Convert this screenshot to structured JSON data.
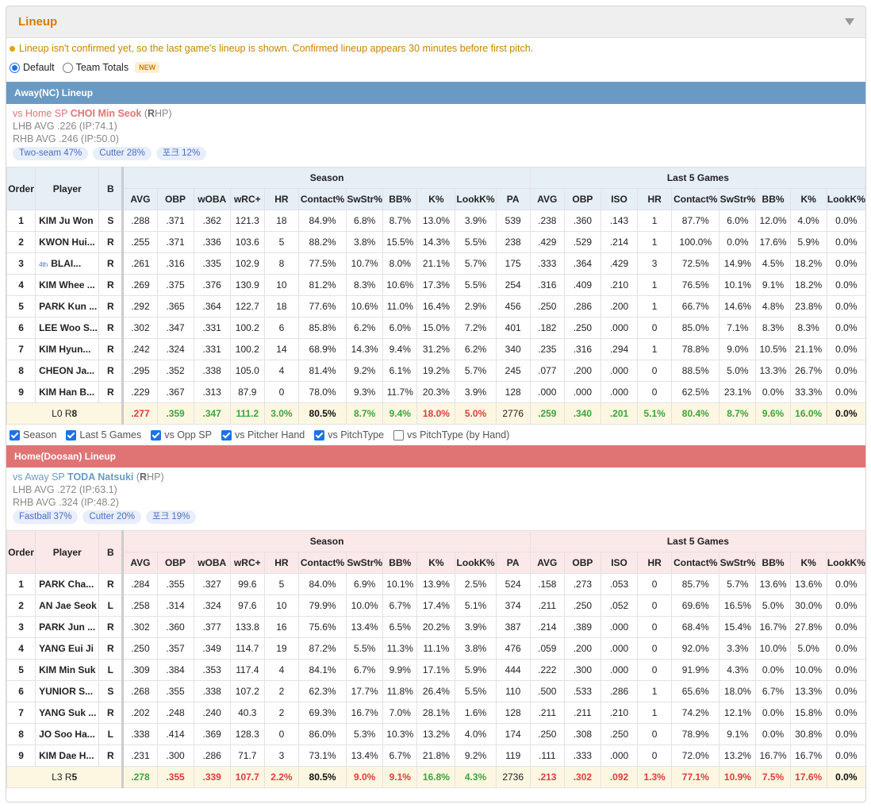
{
  "header": {
    "title": "Lineup"
  },
  "notice": "Lineup isn't confirmed yet, so the last game's lineup is shown. Confirmed lineup appears 30 minutes before first pitch.",
  "modes": {
    "default_label": "Default",
    "totals_label": "Team Totals",
    "new_badge": "NEW",
    "selected": "Default"
  },
  "columns": {
    "order": "Order",
    "player": "Player",
    "bat": "B",
    "season_group": "Season",
    "last5_group": "Last 5 Games",
    "season": [
      "AVG",
      "OBP",
      "wOBA",
      "wRC+",
      "HR",
      "Contact%",
      "SwStr%",
      "BB%",
      "K%",
      "LookK%",
      "PA"
    ],
    "last5": [
      "AVG",
      "OBP",
      "ISO",
      "HR",
      "Contact%",
      "SwStr%",
      "BB%",
      "K%",
      "LookK%"
    ]
  },
  "away": {
    "title": "Away(NC) Lineup",
    "sp_prefix": "vs Home SP",
    "sp_name": "CHOI Min Seok",
    "sp_hand_open": "(",
    "sp_hand_letter": "R",
    "sp_hand_rest": "HP)",
    "lhb": "LHB AVG .226 (IP:74.1)",
    "rhb": "RHB AVG .246 (IP:50.0)",
    "pitches": [
      "Two-seam 47%",
      "Cutter 28%",
      "포크 12%"
    ],
    "rows": [
      {
        "order": "1",
        "badge": "",
        "player": "KIM Ju Won",
        "bat": "S",
        "season": [
          ".288",
          ".371",
          ".362",
          "121.3",
          "18",
          "84.9%",
          "6.8%",
          "8.7%",
          "13.0%",
          "3.9%",
          "539"
        ],
        "last5": [
          ".238",
          ".360",
          ".143",
          "1",
          "87.7%",
          "6.0%",
          "12.0%",
          "4.0%",
          "0.0%"
        ]
      },
      {
        "order": "2",
        "badge": "",
        "player": "KWON Hui...",
        "bat": "R",
        "season": [
          ".255",
          ".371",
          ".336",
          "103.6",
          "5",
          "88.2%",
          "3.8%",
          "15.5%",
          "14.3%",
          "5.5%",
          "238"
        ],
        "last5": [
          ".429",
          ".529",
          ".214",
          "1",
          "100.0%",
          "0.0%",
          "17.6%",
          "5.9%",
          "0.0%"
        ]
      },
      {
        "order": "3",
        "badge": "4th",
        "player": "BLAI...",
        "bat": "R",
        "season": [
          ".261",
          ".316",
          ".335",
          "102.9",
          "8",
          "77.5%",
          "10.7%",
          "8.0%",
          "21.1%",
          "5.7%",
          "175"
        ],
        "last5": [
          ".333",
          ".364",
          ".429",
          "3",
          "72.5%",
          "14.9%",
          "4.5%",
          "18.2%",
          "0.0%"
        ]
      },
      {
        "order": "4",
        "badge": "",
        "player": "KIM Whee ...",
        "bat": "R",
        "season": [
          ".269",
          ".375",
          ".376",
          "130.9",
          "10",
          "81.2%",
          "8.3%",
          "10.6%",
          "17.3%",
          "5.5%",
          "254"
        ],
        "last5": [
          ".316",
          ".409",
          ".210",
          "1",
          "76.5%",
          "10.1%",
          "9.1%",
          "18.2%",
          "0.0%"
        ]
      },
      {
        "order": "5",
        "badge": "",
        "player": "PARK Kun ...",
        "bat": "R",
        "season": [
          ".292",
          ".365",
          ".364",
          "122.7",
          "18",
          "77.6%",
          "10.6%",
          "11.0%",
          "16.4%",
          "2.9%",
          "456"
        ],
        "last5": [
          ".250",
          ".286",
          ".200",
          "1",
          "66.7%",
          "14.6%",
          "4.8%",
          "23.8%",
          "0.0%"
        ]
      },
      {
        "order": "6",
        "badge": "",
        "player": "LEE Woo S...",
        "bat": "R",
        "season": [
          ".302",
          ".347",
          ".331",
          "100.2",
          "6",
          "85.8%",
          "6.2%",
          "6.0%",
          "15.0%",
          "7.2%",
          "401"
        ],
        "last5": [
          ".182",
          ".250",
          ".000",
          "0",
          "85.0%",
          "7.1%",
          "8.3%",
          "8.3%",
          "0.0%"
        ]
      },
      {
        "order": "7",
        "badge": "",
        "player": "KIM Hyun...",
        "bat": "R",
        "season": [
          ".242",
          ".324",
          ".331",
          "100.2",
          "14",
          "68.9%",
          "14.3%",
          "9.4%",
          "31.2%",
          "6.2%",
          "340"
        ],
        "last5": [
          ".235",
          ".316",
          ".294",
          "1",
          "78.8%",
          "9.0%",
          "10.5%",
          "21.1%",
          "0.0%"
        ]
      },
      {
        "order": "8",
        "badge": "",
        "player": "CHEON Ja...",
        "bat": "R",
        "season": [
          ".295",
          ".352",
          ".338",
          "105.0",
          "4",
          "81.4%",
          "9.2%",
          "6.1%",
          "19.2%",
          "5.7%",
          "245"
        ],
        "last5": [
          ".077",
          ".200",
          ".000",
          "0",
          "88.5%",
          "5.0%",
          "13.3%",
          "26.7%",
          "0.0%"
        ]
      },
      {
        "order": "9",
        "badge": "",
        "player": "KIM Han B...",
        "bat": "R",
        "season": [
          ".229",
          ".367",
          ".313",
          "87.9",
          "0",
          "78.0%",
          "9.3%",
          "11.7%",
          "20.3%",
          "3.9%",
          "128"
        ],
        "last5": [
          ".000",
          ".000",
          ".000",
          "0",
          "62.5%",
          "23.1%",
          "0.0%",
          "33.3%",
          "0.0%"
        ]
      }
    ],
    "total": {
      "l_label": "L0 R",
      "r_count": "8",
      "season": [
        ".277",
        ".359",
        ".347",
        "111.2",
        "3.0%",
        "80.5%",
        "8.7%",
        "9.4%",
        "18.0%",
        "5.0%",
        "2776"
      ],
      "season_colors": [
        "r",
        "g",
        "g",
        "g",
        "g",
        "b",
        "g",
        "g",
        "r",
        "r",
        "n"
      ],
      "last5": [
        ".259",
        ".340",
        ".201",
        "5.1%",
        "80.4%",
        "8.7%",
        "9.6%",
        "16.0%",
        "0.0%"
      ],
      "last5_colors": [
        "g",
        "g",
        "g",
        "g",
        "g",
        "g",
        "g",
        "g",
        "b"
      ]
    }
  },
  "filters": [
    {
      "label": "Season",
      "checked": true
    },
    {
      "label": "Last 5 Games",
      "checked": true
    },
    {
      "label": "vs Opp SP",
      "checked": true
    },
    {
      "label": "vs Pitcher Hand",
      "checked": true
    },
    {
      "label": "vs PitchType",
      "checked": true
    },
    {
      "label": "vs PitchType (by Hand)",
      "checked": false
    }
  ],
  "home": {
    "title": "Home(Doosan) Lineup",
    "sp_prefix": "vs Away SP",
    "sp_name": "TODA Natsuki",
    "sp_hand_open": "(",
    "sp_hand_letter": "R",
    "sp_hand_rest": "HP)",
    "lhb": "LHB AVG .272 (IP:63.1)",
    "rhb": "RHB AVG .324 (IP:48.2)",
    "pitches": [
      "Fastball 37%",
      "Cutter 20%",
      "포크 19%"
    ],
    "rows": [
      {
        "order": "1",
        "badge": "",
        "player": "PARK Cha...",
        "bat": "R",
        "season": [
          ".284",
          ".355",
          ".327",
          "99.6",
          "5",
          "84.0%",
          "6.9%",
          "10.1%",
          "13.9%",
          "2.5%",
          "524"
        ],
        "last5": [
          ".158",
          ".273",
          ".053",
          "0",
          "85.7%",
          "5.7%",
          "13.6%",
          "13.6%",
          "0.0%"
        ]
      },
      {
        "order": "2",
        "badge": "",
        "player": "AN Jae Seok",
        "bat": "L",
        "season": [
          ".258",
          ".314",
          ".324",
          "97.6",
          "10",
          "79.9%",
          "10.0%",
          "6.7%",
          "17.4%",
          "5.1%",
          "374"
        ],
        "last5": [
          ".211",
          ".250",
          ".052",
          "0",
          "69.6%",
          "16.5%",
          "5.0%",
          "30.0%",
          "0.0%"
        ]
      },
      {
        "order": "3",
        "badge": "",
        "player": "PARK Jun ...",
        "bat": "R",
        "season": [
          ".302",
          ".360",
          ".377",
          "133.8",
          "16",
          "75.6%",
          "13.4%",
          "6.5%",
          "20.2%",
          "3.9%",
          "387"
        ],
        "last5": [
          ".214",
          ".389",
          ".000",
          "0",
          "68.4%",
          "15.4%",
          "16.7%",
          "27.8%",
          "0.0%"
        ]
      },
      {
        "order": "4",
        "badge": "",
        "player": "YANG Eui Ji",
        "bat": "R",
        "season": [
          ".250",
          ".357",
          ".349",
          "114.7",
          "19",
          "87.2%",
          "5.5%",
          "11.3%",
          "11.1%",
          "3.8%",
          "476"
        ],
        "last5": [
          ".059",
          ".200",
          ".000",
          "0",
          "92.0%",
          "3.3%",
          "10.0%",
          "5.0%",
          "0.0%"
        ]
      },
      {
        "order": "5",
        "badge": "",
        "player": "KIM Min Suk",
        "bat": "L",
        "season": [
          ".309",
          ".384",
          ".353",
          "117.4",
          "4",
          "84.1%",
          "6.7%",
          "9.9%",
          "17.1%",
          "5.9%",
          "444"
        ],
        "last5": [
          ".222",
          ".300",
          ".000",
          "0",
          "91.9%",
          "4.3%",
          "0.0%",
          "10.0%",
          "0.0%"
        ]
      },
      {
        "order": "6",
        "badge": "",
        "player": "YUNIOR S...",
        "bat": "S",
        "season": [
          ".268",
          ".355",
          ".338",
          "107.2",
          "2",
          "62.3%",
          "17.7%",
          "11.8%",
          "26.4%",
          "5.5%",
          "110"
        ],
        "last5": [
          ".500",
          ".533",
          ".286",
          "1",
          "65.6%",
          "18.0%",
          "6.7%",
          "13.3%",
          "0.0%"
        ]
      },
      {
        "order": "7",
        "badge": "",
        "player": "YANG Suk ...",
        "bat": "R",
        "season": [
          ".202",
          ".248",
          ".240",
          "40.3",
          "2",
          "69.3%",
          "16.7%",
          "7.0%",
          "28.1%",
          "1.6%",
          "128"
        ],
        "last5": [
          ".211",
          ".211",
          ".210",
          "1",
          "74.2%",
          "12.1%",
          "0.0%",
          "15.8%",
          "0.0%"
        ]
      },
      {
        "order": "8",
        "badge": "",
        "player": "JO Soo Ha...",
        "bat": "L",
        "season": [
          ".338",
          ".414",
          ".369",
          "128.3",
          "0",
          "86.0%",
          "5.3%",
          "10.3%",
          "13.2%",
          "4.0%",
          "174"
        ],
        "last5": [
          ".250",
          ".308",
          ".250",
          "0",
          "78.9%",
          "9.1%",
          "0.0%",
          "30.8%",
          "0.0%"
        ]
      },
      {
        "order": "9",
        "badge": "",
        "player": "KIM Dae H...",
        "bat": "R",
        "season": [
          ".231",
          ".300",
          ".286",
          "71.7",
          "3",
          "73.1%",
          "13.4%",
          "6.7%",
          "21.8%",
          "9.2%",
          "119"
        ],
        "last5": [
          ".111",
          ".333",
          ".000",
          "0",
          "72.0%",
          "13.2%",
          "16.7%",
          "16.7%",
          "0.0%"
        ]
      }
    ],
    "total": {
      "l_label": "L3 R",
      "r_count": "5",
      "season": [
        ".278",
        ".355",
        ".339",
        "107.7",
        "2.2%",
        "80.5%",
        "9.0%",
        "9.1%",
        "16.8%",
        "4.3%",
        "2736"
      ],
      "season_colors": [
        "g",
        "r",
        "r",
        "r",
        "r",
        "b",
        "r",
        "r",
        "g",
        "g",
        "n"
      ],
      "last5": [
        ".213",
        ".302",
        ".092",
        "1.3%",
        "77.1%",
        "10.9%",
        "7.5%",
        "17.6%",
        "0.0%"
      ],
      "last5_colors": [
        "r",
        "r",
        "r",
        "r",
        "r",
        "r",
        "r",
        "r",
        "b"
      ]
    }
  },
  "colors": {
    "away_bar": "#6a9ac4",
    "home_bar": "#e07475",
    "title": "#d87a00",
    "good": "#3aa63a",
    "bad": "#e03c3c"
  }
}
